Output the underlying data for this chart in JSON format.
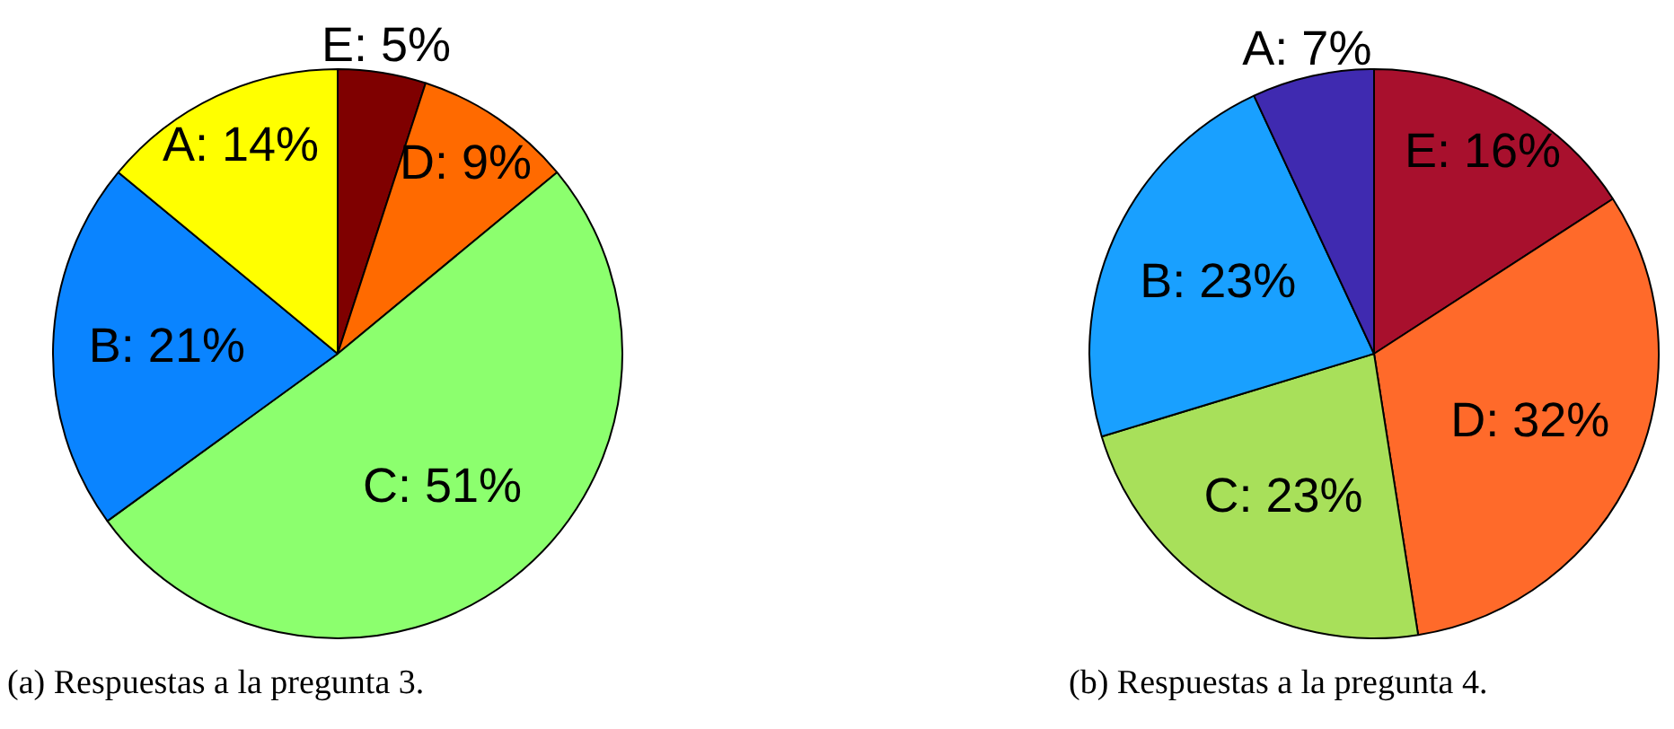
{
  "chart_data": [
    {
      "type": "pie",
      "categories": [
        "E: 5%",
        "D: 9%",
        "C: 51%",
        "B: 21%",
        "A: 14%"
      ],
      "values": [
        5,
        9,
        51,
        21,
        14
      ],
      "colors": [
        "#7f0000",
        "#ff6a00",
        "#8cff6e",
        "#0a84ff",
        "#ffff00"
      ],
      "annotations": [
        "(a) Respuestas a la pregunta 3."
      ]
    },
    {
      "type": "pie",
      "categories": [
        "E: 16%",
        "D: 32%",
        "C: 23%",
        "B: 23%",
        "A: 7%"
      ],
      "values": [
        16,
        32,
        23,
        23,
        7
      ],
      "colors": [
        "#a8102d",
        "#ff6a2a",
        "#a8e05a",
        "#19a0ff",
        "#3f2ab0"
      ],
      "annotations": [
        "(b) Respuestas a la pregunta 4."
      ]
    }
  ]
}
